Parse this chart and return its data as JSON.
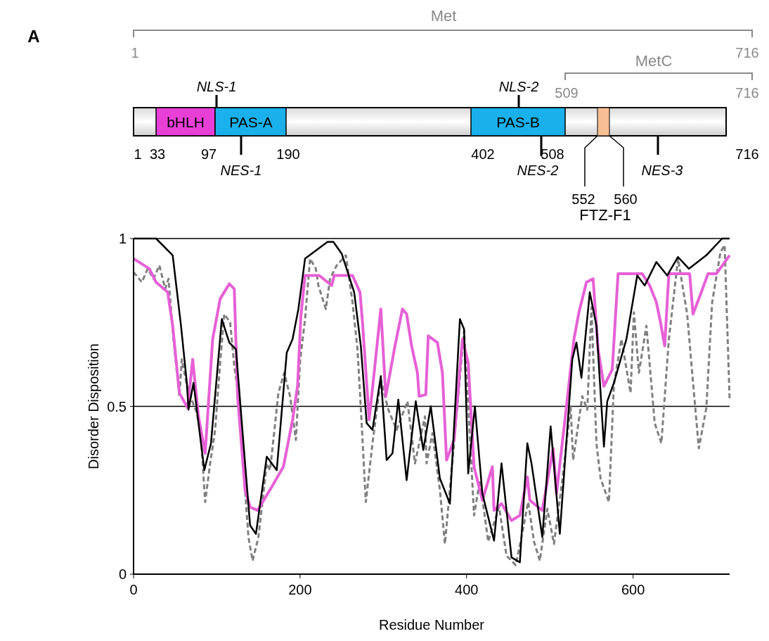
{
  "chart_data": {
    "type": "line",
    "xlabel": "Residue Number",
    "ylabel": "Disorder Disposition",
    "xlim": [
      0,
      716
    ],
    "ylim": [
      0,
      1
    ],
    "xticks": [
      0,
      200,
      400,
      600
    ],
    "yticks": [
      0,
      0.5,
      1
    ],
    "grid": false,
    "ref_lines": [
      {
        "axis": "y",
        "value": 0.5,
        "color": "#000000"
      }
    ],
    "annotations": [
      "A",
      "Met",
      "1",
      "716",
      "MetC",
      "509",
      "716",
      "NLS-1",
      "NLS-2",
      "bHLH",
      "PAS-A",
      "PAS-B",
      "1",
      "33",
      "97",
      "190",
      "402",
      "508",
      "716",
      "NES-1",
      "NES-2",
      "NES-3",
      "552",
      "560",
      "FTZ-F1"
    ],
    "series": [
      {
        "color": "#000000",
        "line_style": "solid",
        "x": [
          0,
          27,
          47,
          57,
          64,
          66,
          72,
          85,
          93,
          106,
          115,
          123,
          132,
          140,
          147,
          160,
          172,
          184,
          191,
          198,
          206,
          214,
          233,
          240,
          250,
          265,
          273,
          280,
          287,
          297,
          304,
          311,
          318,
          328,
          339,
          348,
          357,
          368,
          380,
          392,
          397,
          402,
          410,
          419,
          433,
          442,
          454,
          464,
          473,
          478,
          491,
          501,
          512,
          527,
          532,
          538,
          548,
          556,
          565,
          569,
          577,
          592,
          605,
          614,
          628,
          641,
          654,
          667,
          688,
          707,
          716
        ],
        "values": [
          1,
          1,
          0.95,
          0.74,
          0.57,
          0.49,
          0.57,
          0.31,
          0.39,
          0.76,
          0.69,
          0.67,
          0.39,
          0.145,
          0.12,
          0.35,
          0.31,
          0.66,
          0.7,
          0.79,
          0.94,
          0.955,
          0.99,
          0.99,
          0.955,
          0.84,
          0.68,
          0.45,
          0.43,
          0.59,
          0.34,
          0.36,
          0.52,
          0.28,
          0.515,
          0.37,
          0.5,
          0.285,
          0.21,
          0.76,
          0.73,
          0.3,
          0.5,
          0.24,
          0.1,
          0.33,
          0.05,
          0.035,
          0.39,
          0.33,
          0.11,
          0.44,
          0.12,
          0.64,
          0.69,
          0.585,
          0.84,
          0.74,
          0.38,
          0.515,
          0.57,
          0.7,
          0.89,
          0.86,
          0.93,
          0.89,
          0.945,
          0.91,
          0.95,
          1,
          1
        ]
      },
      {
        "color": "#e660d6",
        "line_style": "solid",
        "x": [
          0,
          19,
          27,
          41,
          47,
          55,
          65,
          71,
          78,
          86,
          95,
          104,
          115,
          121,
          125,
          134,
          140,
          149,
          166,
          180,
          191,
          197,
          201,
          206,
          223,
          238,
          241,
          263,
          272,
          275,
          283,
          289,
          297,
          303,
          314,
          323,
          328,
          334,
          341,
          343,
          351,
          354,
          365,
          371,
          376,
          385,
          395,
          402,
          409,
          419,
          431,
          433,
          442,
          454,
          464,
          473,
          476,
          491,
          504,
          508,
          520,
          529,
          535,
          544,
          552,
          558,
          565,
          575,
          582,
          611,
          620,
          628,
          633,
          638,
          643,
          668,
          672,
          682,
          690,
          700,
          716
        ],
        "values": [
          0.94,
          0.91,
          0.87,
          0.84,
          0.74,
          0.54,
          0.495,
          0.64,
          0.47,
          0.36,
          0.7,
          0.82,
          0.865,
          0.85,
          0.53,
          0.25,
          0.2,
          0.19,
          0.26,
          0.32,
          0.46,
          0.56,
          0.77,
          0.89,
          0.89,
          0.86,
          0.89,
          0.89,
          0.84,
          0.75,
          0.46,
          0.6,
          0.79,
          0.53,
          0.68,
          0.79,
          0.775,
          0.68,
          0.6,
          0.53,
          0.535,
          0.71,
          0.69,
          0.6,
          0.34,
          0.4,
          0.7,
          0.63,
          0.32,
          0.22,
          0.32,
          0.19,
          0.21,
          0.16,
          0.175,
          0.29,
          0.22,
          0.19,
          0.375,
          0.24,
          0.5,
          0.7,
          0.78,
          0.87,
          0.88,
          0.67,
          0.56,
          0.61,
          0.895,
          0.895,
          0.86,
          0.81,
          0.75,
          0.68,
          0.895,
          0.895,
          0.775,
          0.84,
          0.895,
          0.895,
          0.95
        ]
      },
      {
        "color": "#808080",
        "line_style": "dashed",
        "x": [
          0,
          10,
          17,
          24,
          31,
          38,
          42,
          48,
          55,
          58,
          65,
          76,
          81,
          86,
          92,
          98,
          104,
          109,
          116,
          121,
          128,
          132,
          138,
          143,
          150,
          160,
          164,
          174,
          181,
          188,
          195,
          200,
          206,
          212,
          219,
          222,
          231,
          236,
          244,
          255,
          263,
          269,
          273,
          279,
          287,
          297,
          306,
          316,
          329,
          338,
          350,
          352,
          359,
          368,
          374,
          385,
          397,
          403,
          409,
          416,
          426,
          439,
          448,
          459,
          466,
          474,
          481,
          488,
          497,
          505,
          515,
          525,
          528,
          539,
          545,
          550,
          556,
          561,
          571,
          577,
          586,
          597,
          601,
          607,
          616,
          626,
          634,
          643,
          654,
          665,
          671,
          679,
          688,
          695,
          705,
          710,
          716
        ],
        "values": [
          0.9,
          0.87,
          0.91,
          0.88,
          0.92,
          0.85,
          0.88,
          0.7,
          0.53,
          0.64,
          0.55,
          0.48,
          0.41,
          0.215,
          0.33,
          0.43,
          0.63,
          0.775,
          0.75,
          0.62,
          0.5,
          0.32,
          0.11,
          0.04,
          0.11,
          0.33,
          0.31,
          0.54,
          0.6,
          0.53,
          0.4,
          0.635,
          0.76,
          0.94,
          0.91,
          0.86,
          0.79,
          0.88,
          0.92,
          0.95,
          0.81,
          0.67,
          0.495,
          0.215,
          0.39,
          0.58,
          0.49,
          0.43,
          0.515,
          0.33,
          0.47,
          0.33,
          0.42,
          0.25,
          0.09,
          0.39,
          0.725,
          0.46,
          0.175,
          0.28,
          0.097,
          0.2,
          0.055,
          0.027,
          0.11,
          0.215,
          0.097,
          0.04,
          0.195,
          0.09,
          0.28,
          0.5,
          0.34,
          0.53,
          0.49,
          0.795,
          0.39,
          0.285,
          0.215,
          0.565,
          0.7,
          0.54,
          0.78,
          0.6,
          0.74,
          0.45,
          0.39,
          0.7,
          0.94,
          0.775,
          0.6,
          0.375,
          0.495,
          0.81,
          0.96,
          0.98,
          0.52
        ]
      }
    ]
  }
}
